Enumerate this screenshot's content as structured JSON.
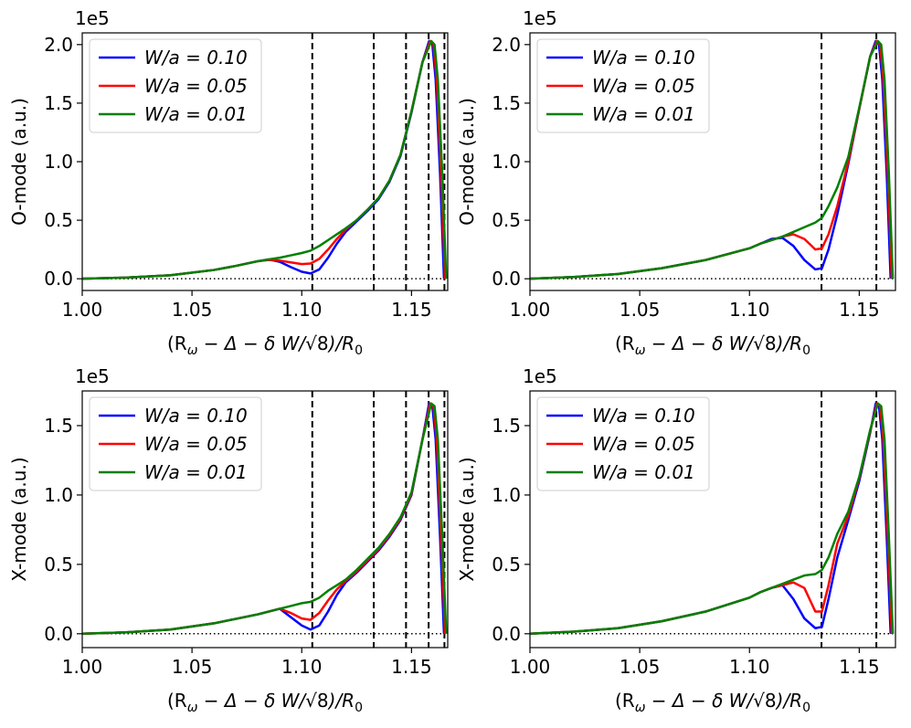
{
  "chart_data": [
    {
      "type": "line",
      "ylabel": "O-mode (a.u.)",
      "xlabel_parts": {
        "main": "(R",
        "omega": "ω",
        "mid": " − Δ − δ W/",
        "sqrt": "√8",
        "close": ")/R",
        "sub": "0"
      },
      "offset_text": "1e5",
      "xlim": [
        1.0,
        1.1665
      ],
      "ylim": [
        -0.1,
        2.1
      ],
      "xticks": [
        {
          "v": 1.0,
          "label": "1.00"
        },
        {
          "v": 1.05,
          "label": "1.05"
        },
        {
          "v": 1.1,
          "label": "1.10"
        },
        {
          "v": 1.15,
          "label": "1.15"
        }
      ],
      "yticks": [
        {
          "v": 0.0,
          "label": "0.0"
        },
        {
          "v": 0.5,
          "label": "0.5"
        },
        {
          "v": 1.0,
          "label": "1.0"
        },
        {
          "v": 1.5,
          "label": "1.5"
        },
        {
          "v": 2.0,
          "label": "2.0"
        }
      ],
      "vlines": [
        1.1048,
        1.1328,
        1.1475,
        1.1578,
        1.165
      ],
      "hline": 0,
      "series": [
        {
          "name": "W/a = 0.10",
          "color": "#0000ff",
          "x": [
            1.0,
            1.02,
            1.04,
            1.06,
            1.07,
            1.08,
            1.085,
            1.09,
            1.095,
            1.1,
            1.104,
            1.108,
            1.112,
            1.116,
            1.12,
            1.125,
            1.13,
            1.135,
            1.14,
            1.145,
            1.15,
            1.155,
            1.158,
            1.1595,
            1.161,
            1.163,
            1.1648
          ],
          "y": [
            0.0,
            0.01,
            0.03,
            0.075,
            0.11,
            0.15,
            0.165,
            0.145,
            0.1,
            0.06,
            0.045,
            0.08,
            0.18,
            0.3,
            0.4,
            0.49,
            0.58,
            0.68,
            0.83,
            1.05,
            1.42,
            1.85,
            2.03,
            2.0,
            1.7,
            0.9,
            0.0
          ]
        },
        {
          "name": "W/a = 0.05",
          "color": "#ff0000",
          "x": [
            1.0,
            1.02,
            1.04,
            1.06,
            1.07,
            1.08,
            1.085,
            1.09,
            1.095,
            1.1,
            1.104,
            1.108,
            1.112,
            1.116,
            1.12,
            1.125,
            1.13,
            1.135,
            1.14,
            1.145,
            1.15,
            1.155,
            1.1585,
            1.16,
            1.1615,
            1.1635,
            1.1653
          ],
          "y": [
            0.0,
            0.01,
            0.03,
            0.075,
            0.11,
            0.15,
            0.16,
            0.155,
            0.14,
            0.125,
            0.13,
            0.17,
            0.25,
            0.34,
            0.42,
            0.5,
            0.59,
            0.69,
            0.84,
            1.06,
            1.43,
            1.85,
            2.03,
            2.0,
            1.7,
            0.9,
            0.0
          ]
        },
        {
          "name": "W/a = 0.01",
          "color": "#008000",
          "x": [
            1.0,
            1.02,
            1.04,
            1.06,
            1.07,
            1.08,
            1.085,
            1.09,
            1.095,
            1.1,
            1.104,
            1.108,
            1.112,
            1.116,
            1.12,
            1.125,
            1.13,
            1.135,
            1.14,
            1.145,
            1.15,
            1.155,
            1.159,
            1.1605,
            1.162,
            1.164,
            1.1658
          ],
          "y": [
            0.0,
            0.01,
            0.03,
            0.075,
            0.11,
            0.15,
            0.165,
            0.18,
            0.2,
            0.22,
            0.24,
            0.28,
            0.33,
            0.38,
            0.43,
            0.5,
            0.59,
            0.69,
            0.84,
            1.06,
            1.43,
            1.85,
            2.03,
            2.0,
            1.7,
            0.9,
            0.0
          ]
        }
      ],
      "legend_position": "upper-left"
    },
    {
      "type": "line",
      "ylabel": "O-mode (a.u.)",
      "xlabel_parts": {
        "main": "(R",
        "omega": "ω",
        "mid": " − Δ − δ W/",
        "sqrt": "√8",
        "close": ")/R",
        "sub": "0"
      },
      "offset_text": "1e5",
      "xlim": [
        1.0,
        1.1665
      ],
      "ylim": [
        -0.1,
        2.1
      ],
      "xticks": [
        {
          "v": 1.0,
          "label": "1.00"
        },
        {
          "v": 1.05,
          "label": "1.05"
        },
        {
          "v": 1.1,
          "label": "1.10"
        },
        {
          "v": 1.15,
          "label": "1.15"
        }
      ],
      "yticks": [
        {
          "v": 0.0,
          "label": "0.0"
        },
        {
          "v": 0.5,
          "label": "0.5"
        },
        {
          "v": 1.0,
          "label": "1.0"
        },
        {
          "v": 1.5,
          "label": "1.5"
        },
        {
          "v": 2.0,
          "label": "2.0"
        }
      ],
      "vlines": [
        1.1328,
        1.1578
      ],
      "hline": 0,
      "series": [
        {
          "name": "W/a = 0.10",
          "color": "#0000ff",
          "x": [
            1.0,
            1.02,
            1.04,
            1.06,
            1.08,
            1.1,
            1.105,
            1.11,
            1.115,
            1.12,
            1.125,
            1.13,
            1.133,
            1.136,
            1.14,
            1.145,
            1.15,
            1.155,
            1.1575,
            1.159,
            1.1605,
            1.1625,
            1.1643
          ],
          "y": [
            0.0,
            0.015,
            0.04,
            0.09,
            0.16,
            0.26,
            0.3,
            0.34,
            0.35,
            0.28,
            0.16,
            0.08,
            0.09,
            0.25,
            0.55,
            0.98,
            1.45,
            1.9,
            2.03,
            2.0,
            1.7,
            0.9,
            0.0
          ]
        },
        {
          "name": "W/a = 0.05",
          "color": "#ff0000",
          "x": [
            1.0,
            1.02,
            1.04,
            1.06,
            1.08,
            1.1,
            1.105,
            1.11,
            1.115,
            1.12,
            1.125,
            1.13,
            1.133,
            1.136,
            1.14,
            1.145,
            1.15,
            1.155,
            1.158,
            1.1595,
            1.161,
            1.163,
            1.1648
          ],
          "y": [
            0.0,
            0.015,
            0.04,
            0.09,
            0.16,
            0.26,
            0.3,
            0.33,
            0.36,
            0.38,
            0.34,
            0.25,
            0.26,
            0.38,
            0.62,
            1.0,
            1.45,
            1.9,
            2.03,
            2.0,
            1.7,
            0.9,
            0.0
          ]
        },
        {
          "name": "W/a = 0.01",
          "color": "#008000",
          "x": [
            1.0,
            1.02,
            1.04,
            1.06,
            1.08,
            1.1,
            1.105,
            1.11,
            1.115,
            1.12,
            1.125,
            1.13,
            1.133,
            1.136,
            1.14,
            1.145,
            1.15,
            1.155,
            1.1585,
            1.16,
            1.1615,
            1.1635,
            1.1653
          ],
          "y": [
            0.0,
            0.015,
            0.04,
            0.09,
            0.16,
            0.26,
            0.3,
            0.33,
            0.36,
            0.4,
            0.44,
            0.48,
            0.52,
            0.62,
            0.78,
            1.04,
            1.46,
            1.9,
            2.03,
            2.0,
            1.7,
            0.9,
            0.0
          ]
        }
      ],
      "legend_position": "upper-left"
    },
    {
      "type": "line",
      "ylabel": "X-mode (a.u.)",
      "xlabel_parts": {
        "main": "(R",
        "omega": "ω",
        "mid": " − Δ − δ W/",
        "sqrt": "√8",
        "close": ")/R",
        "sub": "0"
      },
      "offset_text": "1e5",
      "xlim": [
        1.0,
        1.1665
      ],
      "ylim": [
        -0.1,
        1.75
      ],
      "xticks": [
        {
          "v": 1.0,
          "label": "1.00"
        },
        {
          "v": 1.05,
          "label": "1.05"
        },
        {
          "v": 1.1,
          "label": "1.10"
        },
        {
          "v": 1.15,
          "label": "1.15"
        }
      ],
      "yticks": [
        {
          "v": 0.0,
          "label": "0.0"
        },
        {
          "v": 0.5,
          "label": "0.5"
        },
        {
          "v": 1.0,
          "label": "1.0"
        },
        {
          "v": 1.5,
          "label": "1.5"
        }
      ],
      "vlines": [
        1.1048,
        1.1328,
        1.1475,
        1.1578,
        1.165
      ],
      "hline": 0,
      "series": [
        {
          "name": "W/a = 0.10",
          "color": "#0000ff",
          "x": [
            1.0,
            1.02,
            1.04,
            1.06,
            1.08,
            1.09,
            1.095,
            1.1,
            1.104,
            1.108,
            1.112,
            1.116,
            1.12,
            1.125,
            1.13,
            1.135,
            1.14,
            1.145,
            1.15,
            1.155,
            1.158,
            1.1595,
            1.161,
            1.163,
            1.1648
          ],
          "y": [
            0.0,
            0.01,
            0.03,
            0.075,
            0.14,
            0.18,
            0.12,
            0.06,
            0.03,
            0.06,
            0.16,
            0.28,
            0.37,
            0.44,
            0.52,
            0.6,
            0.7,
            0.82,
            1.0,
            1.4,
            1.66,
            1.64,
            1.4,
            0.7,
            0.0
          ]
        },
        {
          "name": "W/a = 0.05",
          "color": "#ff0000",
          "x": [
            1.0,
            1.02,
            1.04,
            1.06,
            1.08,
            1.09,
            1.095,
            1.1,
            1.104,
            1.108,
            1.112,
            1.116,
            1.12,
            1.125,
            1.13,
            1.135,
            1.14,
            1.145,
            1.15,
            1.155,
            1.1585,
            1.16,
            1.1615,
            1.1635,
            1.1653
          ],
          "y": [
            0.0,
            0.01,
            0.03,
            0.075,
            0.14,
            0.18,
            0.15,
            0.11,
            0.1,
            0.15,
            0.24,
            0.32,
            0.38,
            0.45,
            0.53,
            0.61,
            0.71,
            0.83,
            1.01,
            1.4,
            1.66,
            1.64,
            1.4,
            0.7,
            0.0
          ]
        },
        {
          "name": "W/a = 0.01",
          "color": "#008000",
          "x": [
            1.0,
            1.02,
            1.04,
            1.06,
            1.08,
            1.09,
            1.095,
            1.1,
            1.104,
            1.108,
            1.112,
            1.116,
            1.12,
            1.125,
            1.13,
            1.135,
            1.14,
            1.145,
            1.15,
            1.155,
            1.159,
            1.1605,
            1.162,
            1.164,
            1.1658
          ],
          "y": [
            0.0,
            0.01,
            0.03,
            0.075,
            0.14,
            0.18,
            0.2,
            0.22,
            0.23,
            0.26,
            0.31,
            0.35,
            0.39,
            0.46,
            0.54,
            0.62,
            0.72,
            0.84,
            1.02,
            1.4,
            1.66,
            1.64,
            1.4,
            0.7,
            0.0
          ]
        }
      ],
      "legend_position": "upper-left"
    },
    {
      "type": "line",
      "ylabel": "X-mode (a.u.)",
      "xlabel_parts": {
        "main": "(R",
        "omega": "ω",
        "mid": " − Δ − δ W/",
        "sqrt": "√8",
        "close": ")/R",
        "sub": "0"
      },
      "offset_text": "1e5",
      "xlim": [
        1.0,
        1.1665
      ],
      "ylim": [
        -0.1,
        1.75
      ],
      "xticks": [
        {
          "v": 1.0,
          "label": "1.00"
        },
        {
          "v": 1.05,
          "label": "1.05"
        },
        {
          "v": 1.1,
          "label": "1.10"
        },
        {
          "v": 1.15,
          "label": "1.15"
        }
      ],
      "yticks": [
        {
          "v": 0.0,
          "label": "0.0"
        },
        {
          "v": 0.5,
          "label": "0.5"
        },
        {
          "v": 1.0,
          "label": "1.0"
        },
        {
          "v": 1.5,
          "label": "1.5"
        }
      ],
      "vlines": [
        1.1328,
        1.1578
      ],
      "hline": 0,
      "series": [
        {
          "name": "W/a = 0.10",
          "color": "#0000ff",
          "x": [
            1.0,
            1.02,
            1.04,
            1.06,
            1.08,
            1.1,
            1.105,
            1.11,
            1.115,
            1.12,
            1.125,
            1.13,
            1.133,
            1.136,
            1.14,
            1.145,
            1.15,
            1.155,
            1.1575,
            1.159,
            1.1605,
            1.1625,
            1.1643
          ],
          "y": [
            0.0,
            0.015,
            0.04,
            0.09,
            0.16,
            0.26,
            0.3,
            0.33,
            0.35,
            0.25,
            0.11,
            0.04,
            0.05,
            0.25,
            0.55,
            0.82,
            1.1,
            1.45,
            1.66,
            1.64,
            1.4,
            0.7,
            0.0
          ]
        },
        {
          "name": "W/a = 0.05",
          "color": "#ff0000",
          "x": [
            1.0,
            1.02,
            1.04,
            1.06,
            1.08,
            1.1,
            1.105,
            1.11,
            1.115,
            1.12,
            1.125,
            1.13,
            1.133,
            1.136,
            1.14,
            1.145,
            1.15,
            1.155,
            1.158,
            1.1595,
            1.161,
            1.163,
            1.1648
          ],
          "y": [
            0.0,
            0.015,
            0.04,
            0.09,
            0.16,
            0.26,
            0.3,
            0.33,
            0.35,
            0.37,
            0.33,
            0.16,
            0.16,
            0.35,
            0.65,
            0.85,
            1.12,
            1.46,
            1.66,
            1.64,
            1.4,
            0.7,
            0.0
          ]
        },
        {
          "name": "W/a = 0.01",
          "color": "#008000",
          "x": [
            1.0,
            1.02,
            1.04,
            1.06,
            1.08,
            1.1,
            1.105,
            1.11,
            1.115,
            1.12,
            1.125,
            1.13,
            1.133,
            1.136,
            1.14,
            1.145,
            1.15,
            1.155,
            1.1585,
            1.16,
            1.1615,
            1.1635,
            1.1653
          ],
          "y": [
            0.0,
            0.015,
            0.04,
            0.09,
            0.16,
            0.26,
            0.3,
            0.33,
            0.36,
            0.39,
            0.42,
            0.43,
            0.46,
            0.55,
            0.72,
            0.88,
            1.13,
            1.47,
            1.66,
            1.64,
            1.4,
            0.7,
            0.0
          ]
        }
      ],
      "legend_position": "upper-left"
    }
  ]
}
